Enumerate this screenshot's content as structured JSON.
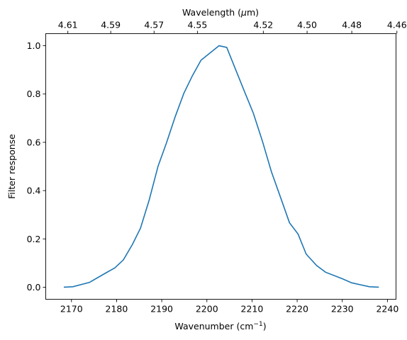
{
  "chart_data": {
    "type": "line",
    "xlabel": "Wavenumber (cm",
    "xlabel_sup": "−1",
    "xlabel_end": ")",
    "ylabel": "Filter response",
    "top_xlabel_pre": "Wavelength (",
    "top_xlabel_mu": "μ",
    "top_xlabel_post": "m)",
    "xlim": [
      2164.3,
      2241.9
    ],
    "ylim": [
      -0.05,
      1.05
    ],
    "x_ticks": [
      2170,
      2180,
      2190,
      2200,
      2210,
      2220,
      2230,
      2240
    ],
    "y_ticks": [
      0.0,
      0.2,
      0.4,
      0.6,
      0.8,
      1.0
    ],
    "y_tick_labels": [
      "0.0",
      "0.2",
      "0.4",
      "0.6",
      "0.8",
      "1.0"
    ],
    "top_ticks": [
      {
        "label": "4.61",
        "x": 2169.2
      },
      {
        "label": "4.59",
        "x": 2178.7
      },
      {
        "label": "4.57",
        "x": 2188.3
      },
      {
        "label": "4.55",
        "x": 2197.9
      },
      {
        "label": "4.52",
        "x": 2212.5
      },
      {
        "label": "4.50",
        "x": 2222.2
      },
      {
        "label": "4.48",
        "x": 2232.1
      },
      {
        "label": "4.46",
        "x": 2242.1
      }
    ],
    "line_color": "#1f77b4",
    "grid": false,
    "series": [
      {
        "x": [
          2168.3,
          2170.3,
          2174.0,
          2177.7,
          2179.6,
          2181.5,
          2183.5,
          2185.3,
          2187.2,
          2189.2,
          2191.0,
          2193.0,
          2194.9,
          2196.8,
          2198.7,
          2200.7,
          2202.7,
          2204.4,
          2206.4,
          2208.4,
          2210.3,
          2212.3,
          2214.3,
          2216.3,
          2218.3,
          2220.2,
          2222.0,
          2224.3,
          2226.3,
          2230.0,
          2232.1,
          2236.0,
          2238.1
        ],
        "y": [
          0.0,
          0.002,
          0.02,
          0.06,
          0.08,
          0.113,
          0.177,
          0.245,
          0.36,
          0.502,
          0.595,
          0.707,
          0.803,
          0.876,
          0.94,
          0.97,
          1.0,
          0.993,
          0.9,
          0.807,
          0.72,
          0.605,
          0.478,
          0.373,
          0.267,
          0.22,
          0.137,
          0.09,
          0.062,
          0.035,
          0.018,
          0.002,
          0.0
        ]
      }
    ]
  }
}
